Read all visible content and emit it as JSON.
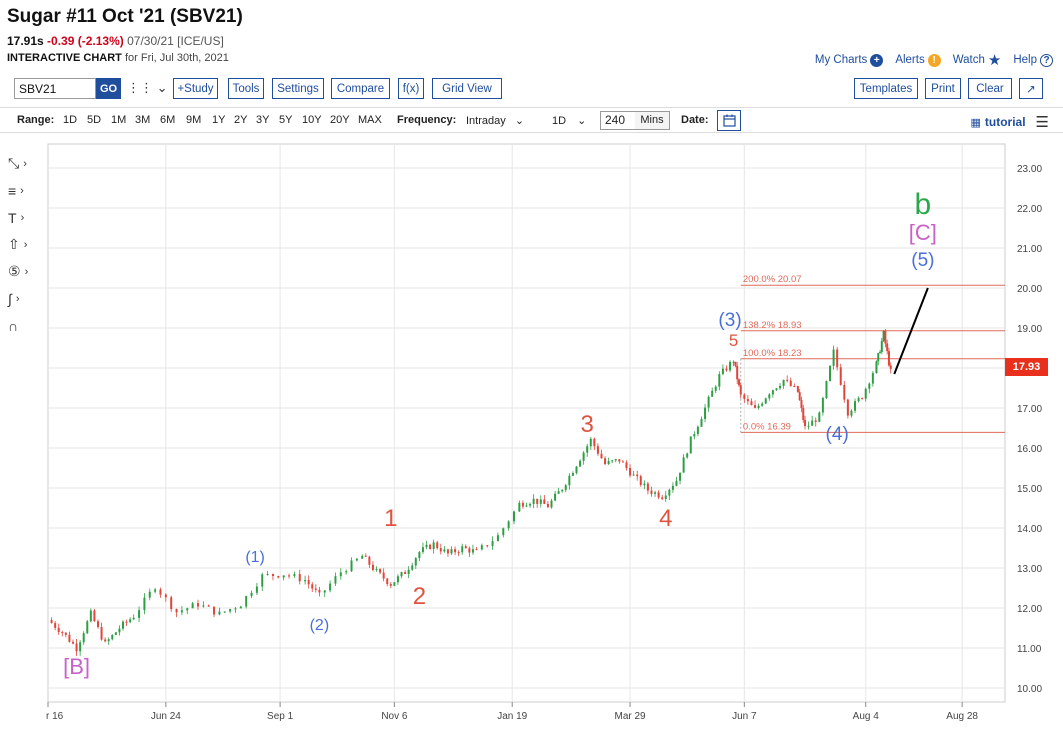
{
  "header": {
    "title": "Sugar #11 Oct '21 (SBV21)",
    "last": "17.91s",
    "change": "-0.39 (-2.13%)",
    "meta": "07/30/21 [ICE/US]",
    "chart_label": "INTERACTIVE CHART",
    "chart_for": "for Fri, Jul 30th, 2021"
  },
  "top_links": {
    "my_charts": "My Charts",
    "alerts": "Alerts",
    "watch": "Watch",
    "help": "Help"
  },
  "toolbar": {
    "symbol": "SBV21",
    "go": "GO",
    "study": "+Study",
    "tools": "Tools",
    "settings": "Settings",
    "compare": "Compare",
    "fx": "f(x)",
    "grid_view": "Grid View",
    "templates": "Templates",
    "print": "Print",
    "clear": "Clear"
  },
  "rangebar": {
    "range_label": "Range:",
    "ranges": [
      "1D",
      "5D",
      "1M",
      "3M",
      "6M",
      "9M",
      "1Y",
      "2Y",
      "3Y",
      "5Y",
      "10Y",
      "20Y",
      "MAX"
    ],
    "frequency_label": "Frequency:",
    "frequency": "Intraday",
    "interval": "1D",
    "mins_value": "240",
    "mins_label": "Mins",
    "date_label": "Date:",
    "tutorial": "tutorial"
  },
  "current_price_tag": "17.93",
  "colors": {
    "up": "#2e9e45",
    "down": "#e0453a",
    "fib": "#e06a5a",
    "wave_red": "#e0543f",
    "wave_blue": "#4a6fd8",
    "wave_purple": "#c862c8",
    "wave_green": "#2aa84a",
    "accent": "#1f4e9c"
  },
  "chart_data": {
    "type": "candlestick",
    "x_ticks": [
      "r 16",
      "Jun 24",
      "Sep 1",
      "Nov 6",
      "Jan 19",
      "Mar 29",
      "Jun 7",
      "Aug 4",
      "Aug 28"
    ],
    "y_ticks": [
      "10.00",
      "11.00",
      "12.00",
      "13.00",
      "14.00",
      "15.00",
      "16.00",
      "17.00",
      "18.00",
      "19.00",
      "20.00",
      "21.00",
      "22.00",
      "23.00"
    ],
    "ylim": [
      9.65,
      23.6
    ],
    "path": [
      [
        0,
        11.7
      ],
      [
        2,
        11.4
      ],
      [
        4,
        11.0
      ],
      [
        6,
        11.85
      ],
      [
        8,
        11.1
      ],
      [
        10,
        11.5
      ],
      [
        12,
        11.8
      ],
      [
        15,
        12.55
      ],
      [
        18,
        11.9
      ],
      [
        21,
        12.1
      ],
      [
        24,
        11.85
      ],
      [
        27,
        12.1
      ],
      [
        30,
        12.8
      ],
      [
        33,
        12.85
      ],
      [
        36,
        12.7
      ],
      [
        38,
        12.3
      ],
      [
        41,
        12.9
      ],
      [
        44,
        13.3
      ],
      [
        46,
        12.9
      ],
      [
        48,
        12.6
      ],
      [
        50,
        12.9
      ],
      [
        52,
        13.4
      ],
      [
        54,
        13.6
      ],
      [
        56,
        13.35
      ],
      [
        58,
        13.5
      ],
      [
        60,
        13.4
      ],
      [
        63,
        13.8
      ],
      [
        66,
        14.6
      ],
      [
        68,
        14.7
      ],
      [
        70,
        14.55
      ],
      [
        72,
        15.0
      ],
      [
        74,
        15.6
      ],
      [
        76,
        16.2
      ],
      [
        78,
        15.6
      ],
      [
        80,
        15.7
      ],
      [
        82,
        15.3
      ],
      [
        84,
        14.95
      ],
      [
        86,
        14.8
      ],
      [
        88,
        15.2
      ],
      [
        90,
        16.2
      ],
      [
        92,
        17.0
      ],
      [
        94,
        17.8
      ],
      [
        96,
        18.2
      ],
      [
        97,
        17.3
      ],
      [
        99,
        16.95
      ],
      [
        101,
        17.4
      ],
      [
        103,
        17.7
      ],
      [
        105,
        17.4
      ],
      [
        106,
        16.5
      ],
      [
        108,
        16.8
      ],
      [
        110,
        18.4
      ],
      [
        112,
        16.9
      ],
      [
        114,
        17.3
      ],
      [
        116,
        18.1
      ],
      [
        117,
        18.85
      ],
      [
        118,
        17.9
      ]
    ],
    "wave_labels": [
      {
        "text": "[B]",
        "x": 4,
        "y": 10.35
      },
      {
        "text": "(1)",
        "x": 29,
        "y": 13.15
      },
      {
        "text": "(2)",
        "x": 38,
        "y": 11.45
      },
      {
        "text": "1",
        "x": 48,
        "y": 14.05
      },
      {
        "text": "2",
        "x": 52,
        "y": 12.1
      },
      {
        "text": "3",
        "x": 75.5,
        "y": 16.4
      },
      {
        "text": "4",
        "x": 86.5,
        "y": 14.05
      },
      {
        "text": "5",
        "x": 96,
        "y": 18.55
      },
      {
        "text": "(3)",
        "x": 95.5,
        "y": 19.05
      },
      {
        "text": "(4)",
        "x": 110.5,
        "y": 16.2
      },
      {
        "text": "(5)",
        "x": 122.5,
        "y": 20.55
      },
      {
        "text": "[C]",
        "x": 122.5,
        "y": 21.2
      },
      {
        "text": "b",
        "x": 122.5,
        "y": 21.85
      }
    ],
    "projection": [
      [
        118.5,
        17.85
      ],
      [
        123.2,
        20.0
      ]
    ],
    "fib_levels": [
      {
        "label": "200.0% 20.07",
        "value": 20.07
      },
      {
        "label": "138.2% 18.93",
        "value": 18.93
      },
      {
        "label": "100.0% 18.23",
        "value": 18.23
      },
      {
        "label": "0.0% 16.39",
        "value": 16.39
      }
    ]
  }
}
